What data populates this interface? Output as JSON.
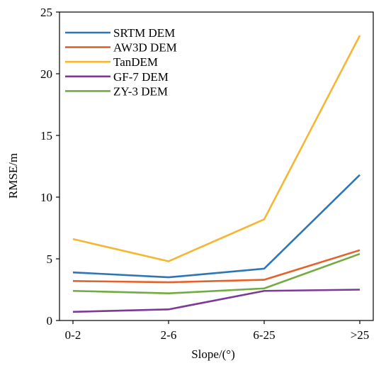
{
  "chart_data": {
    "type": "line",
    "title": "",
    "xlabel": "Slope/(°)",
    "ylabel": "RMSE/m",
    "categories": [
      "0-2",
      "2-6",
      "6-25",
      ">25"
    ],
    "ylim": [
      0,
      25
    ],
    "yticks": [
      0,
      5,
      10,
      15,
      20,
      25
    ],
    "grid": false,
    "legend_position": "top-left",
    "series": [
      {
        "name": "SRTM DEM",
        "color": "#2e75b6",
        "values": [
          3.9,
          3.5,
          4.2,
          11.8
        ]
      },
      {
        "name": "AW3D DEM",
        "color": "#e4622a",
        "values": [
          3.2,
          3.1,
          3.3,
          5.7
        ]
      },
      {
        "name": "TanDEM",
        "color": "#f5b731",
        "values": [
          6.6,
          4.8,
          8.2,
          23.1
        ]
      },
      {
        "name": "GF-7 DEM",
        "color": "#7a3a96",
        "values": [
          0.7,
          0.9,
          2.4,
          2.5
        ]
      },
      {
        "name": "ZY-3 DEM",
        "color": "#72ab3f",
        "values": [
          2.4,
          2.2,
          2.6,
          5.4
        ]
      }
    ]
  }
}
